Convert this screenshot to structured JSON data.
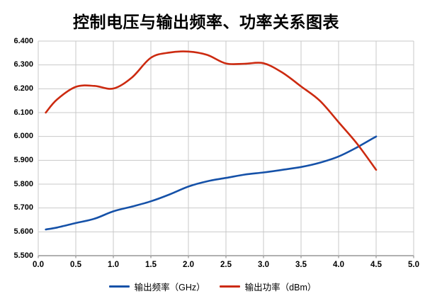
{
  "title": "控制电压与输出频率、功率关系图表",
  "colors": {
    "grid": "#C9C9C9",
    "axis": "#808080",
    "background": "#FFFFFF",
    "title_text": "#000000",
    "frequency_line": "#1551A8",
    "power_line": "#CC2A10"
  },
  "chart_data": {
    "type": "line",
    "title": "控制电压与输出频率、功率关系图表",
    "xlabel": "",
    "ylabel": "",
    "xlim": [
      0.0,
      5.0
    ],
    "ylim": [
      5.5,
      6.4
    ],
    "grid": true,
    "legend_position": "bottom",
    "xticks": [
      "0.0",
      "0.5",
      "1.0",
      "1.5",
      "2.0",
      "2.5",
      "3.0",
      "3.5",
      "4.0",
      "4.5",
      "5.0"
    ],
    "yticks": [
      "6.400",
      "6.300",
      "6.200",
      "6.100",
      "6.000",
      "5.900",
      "5.800",
      "5.700",
      "5.600",
      "5.500"
    ],
    "x": [
      0.1,
      0.25,
      0.5,
      0.75,
      1.0,
      1.25,
      1.5,
      1.75,
      2.0,
      2.25,
      2.5,
      2.75,
      3.0,
      3.25,
      3.5,
      3.75,
      4.0,
      4.25,
      4.5
    ],
    "series": [
      {
        "name": "输出频率（GHz）",
        "color": "#1551A8",
        "values": [
          5.61,
          5.618,
          5.637,
          5.655,
          5.686,
          5.706,
          5.728,
          5.757,
          5.79,
          5.812,
          5.826,
          5.84,
          5.849,
          5.86,
          5.872,
          5.89,
          5.916,
          5.955,
          6.0
        ]
      },
      {
        "name": "输出功率（dBm）",
        "color": "#CC2A10",
        "values": [
          6.1,
          6.155,
          6.208,
          6.212,
          6.201,
          6.248,
          6.33,
          6.352,
          6.356,
          6.342,
          6.306,
          6.305,
          6.307,
          6.268,
          6.21,
          6.15,
          6.06,
          5.968,
          5.86
        ]
      }
    ]
  }
}
